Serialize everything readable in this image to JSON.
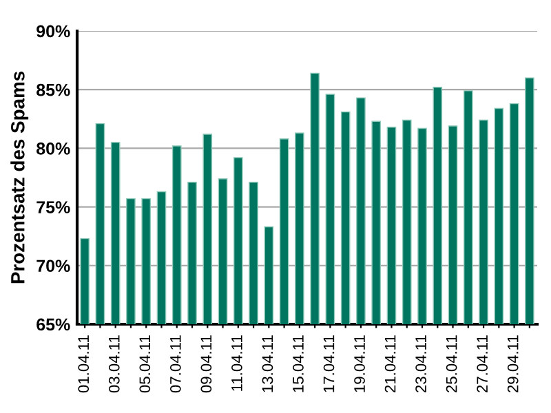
{
  "chart_data": {
    "type": "bar",
    "ylabel": "Prozentsatz des Spams",
    "categories": [
      "01.04.11",
      null,
      "03.04.11",
      null,
      "05.04.11",
      null,
      "07.04.11",
      null,
      "09.04.11",
      null,
      "11.04.11",
      null,
      "13.04.11",
      null,
      "15.04.11",
      null,
      "17.04.11",
      null,
      "19.04.11",
      null,
      "21.04.11",
      null,
      "23.04.11",
      null,
      "25.04.11",
      null,
      "27.04.11",
      null,
      "29.04.11",
      null
    ],
    "values": [
      72.3,
      82.1,
      80.5,
      75.7,
      75.7,
      76.3,
      80.2,
      77.1,
      81.2,
      77.4,
      79.2,
      77.1,
      73.3,
      80.8,
      81.3,
      86.4,
      84.6,
      83.1,
      84.3,
      82.3,
      81.8,
      82.4,
      81.7,
      85.2,
      81.9,
      84.9,
      82.4,
      83.4,
      83.8,
      86.0
    ],
    "color": "#007560",
    "ylim": [
      65,
      90
    ],
    "yticks": [
      {
        "value": 65,
        "label": "65%"
      },
      {
        "value": 70,
        "label": "70%"
      },
      {
        "value": 75,
        "label": "75%"
      },
      {
        "value": 80,
        "label": "80%"
      },
      {
        "value": 85,
        "label": "85%"
      },
      {
        "value": 90,
        "label": "90%"
      }
    ],
    "grid": "y",
    "legend": false
  }
}
